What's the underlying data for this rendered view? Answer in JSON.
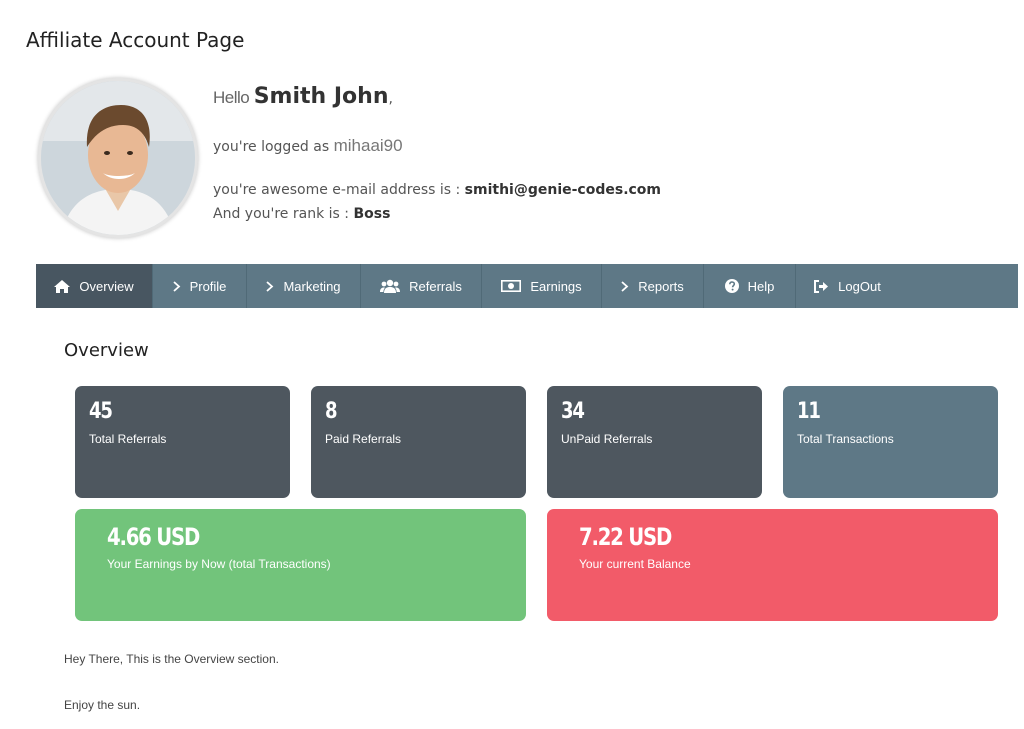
{
  "page_title": "Affiliate Account Page",
  "profile": {
    "hello": "Hello",
    "name": "Smith John",
    "comma": ",",
    "logged_prefix": "you're logged as",
    "username": "mihaai90",
    "email_prefix": "you're awesome e-mail address is :",
    "email": "smithi@genie-codes.com",
    "rank_prefix": "And you're rank is :",
    "rank": "Boss"
  },
  "nav": {
    "items": [
      {
        "label": "Overview",
        "icon": "home-icon"
      },
      {
        "label": "Profile",
        "icon": "chevron-right-icon"
      },
      {
        "label": "Marketing",
        "icon": "chevron-right-icon"
      },
      {
        "label": "Referrals",
        "icon": "users-icon"
      },
      {
        "label": "Earnings",
        "icon": "money-icon"
      },
      {
        "label": "Reports",
        "icon": "chevron-right-icon"
      },
      {
        "label": "Help",
        "icon": "question-circle-icon"
      },
      {
        "label": "LogOut",
        "icon": "sign-out-icon"
      }
    ],
    "active_index": 0
  },
  "overview": {
    "title": "Overview",
    "stats": [
      {
        "value": "45",
        "label": "Total Referrals"
      },
      {
        "value": "8",
        "label": "Paid Referrals"
      },
      {
        "value": "34",
        "label": "UnPaid Referrals"
      },
      {
        "value": "11",
        "label": "Total Transactions"
      }
    ],
    "earnings": {
      "value": "4.66 USD",
      "label": "Your Earnings by Now (total Transactions)"
    },
    "balance": {
      "value": "7.22 USD",
      "label": "Your current Balance"
    },
    "text1": "Hey There, This is the Overview section.",
    "text2": "Enjoy the sun."
  },
  "colors": {
    "nav_bg": "#5e7886",
    "nav_active": "#485661",
    "card_dark": "#4e575f",
    "card_slate": "#5e7886",
    "green": "#72c47b",
    "red": "#f25b69"
  }
}
